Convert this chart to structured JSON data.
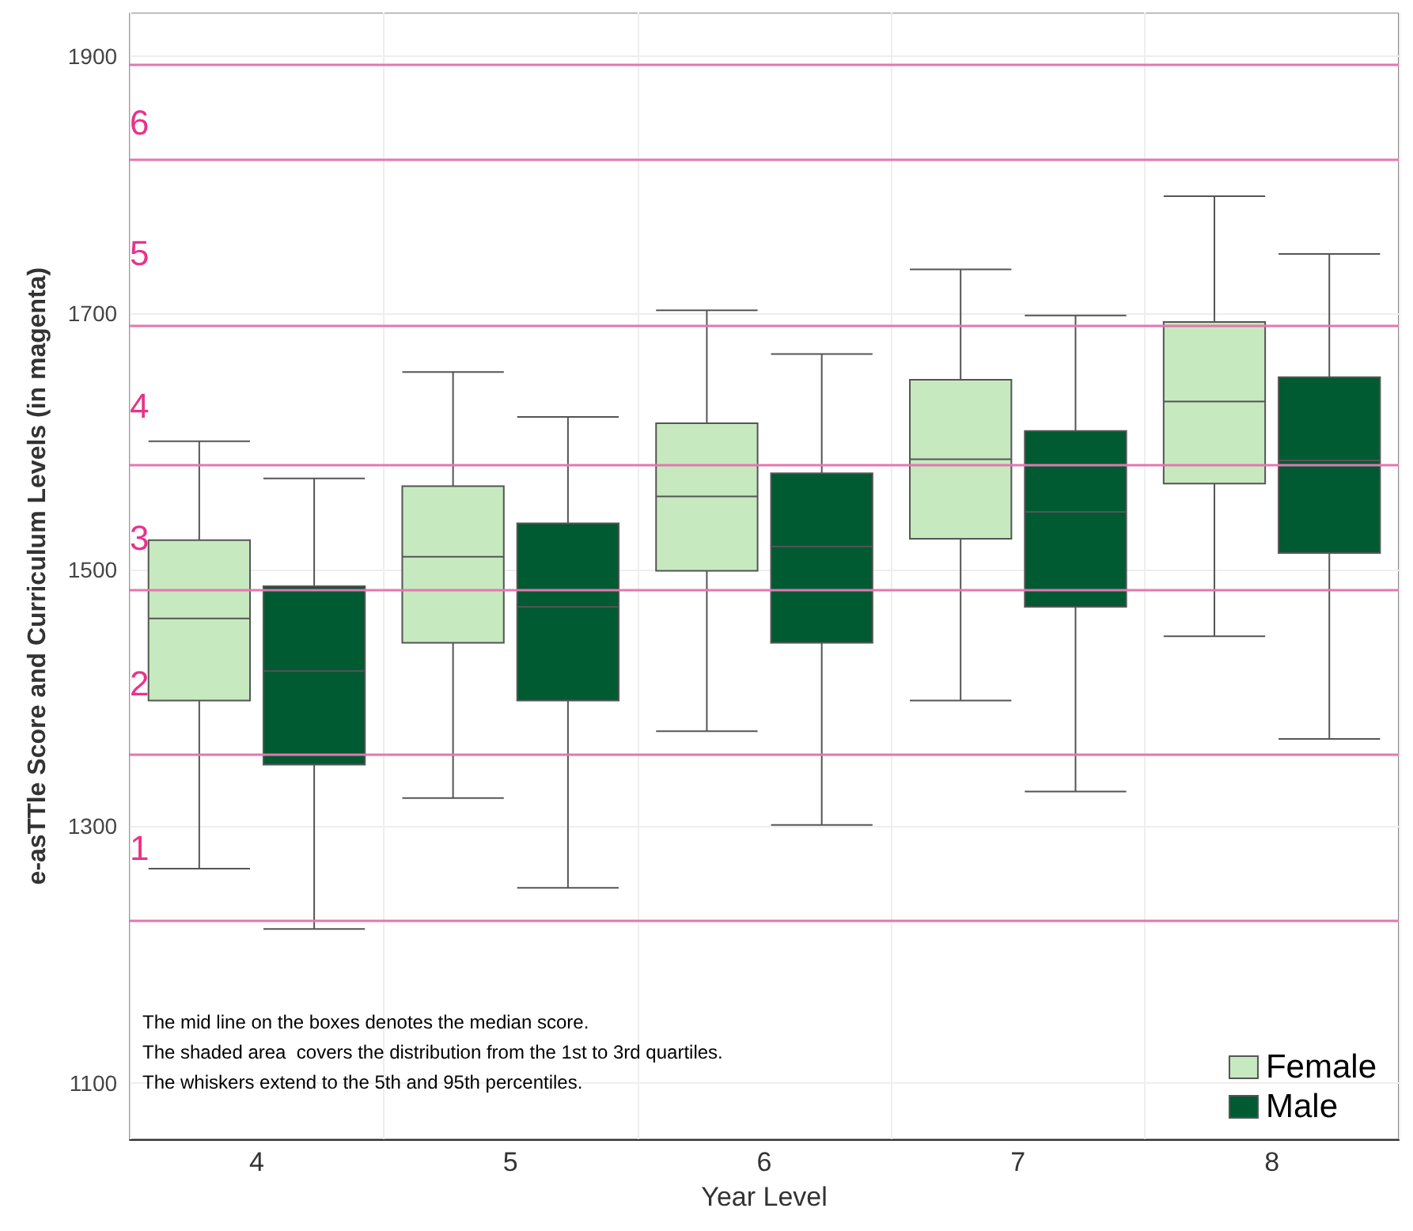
{
  "chart_data": {
    "type": "box",
    "xlabel": "Year Level",
    "ylabel": "e-asTTle Score and Curriculum Levels (in magenta)",
    "categories": [
      "4",
      "5",
      "6",
      "7",
      "8"
    ],
    "series": [
      {
        "name": "Female",
        "color": "#c7e9c0",
        "boxes": [
          {
            "low": 1267,
            "q1": 1398,
            "median": 1462,
            "q3": 1523,
            "high": 1600
          },
          {
            "low": 1322,
            "q1": 1443,
            "median": 1510,
            "q3": 1565,
            "high": 1654
          },
          {
            "low": 1374,
            "q1": 1499,
            "median": 1557,
            "q3": 1614,
            "high": 1702
          },
          {
            "low": 1398,
            "q1": 1524,
            "median": 1586,
            "q3": 1648,
            "high": 1734
          },
          {
            "low": 1448,
            "q1": 1567,
            "median": 1631,
            "q3": 1693,
            "high": 1791
          }
        ]
      },
      {
        "name": "Male",
        "color": "#005a32",
        "boxes": [
          {
            "low": 1220,
            "q1": 1348,
            "median": 1421,
            "q3": 1487,
            "high": 1571
          },
          {
            "low": 1252,
            "q1": 1398,
            "median": 1471,
            "q3": 1536,
            "high": 1619
          },
          {
            "low": 1301,
            "q1": 1443,
            "median": 1518,
            "q3": 1575,
            "high": 1668
          },
          {
            "low": 1327,
            "q1": 1471,
            "median": 1545,
            "q3": 1608,
            "high": 1698
          },
          {
            "low": 1368,
            "q1": 1513,
            "median": 1585,
            "q3": 1650,
            "high": 1746
          }
        ]
      }
    ],
    "ylim": [
      1056,
      1934
    ],
    "yticks": [
      1100,
      1300,
      1500,
      1700,
      1900
    ],
    "grid": true,
    "legend": "bottom right",
    "ref_lines": [
      {
        "axis": "y",
        "value": 1227,
        "color": "#e377b0"
      },
      {
        "axis": "y",
        "value": 1356,
        "color": "#e377b0"
      },
      {
        "axis": "y",
        "value": 1484,
        "color": "#e377b0"
      },
      {
        "axis": "y",
        "value": 1582,
        "color": "#e377b0"
      },
      {
        "axis": "y",
        "value": 1690,
        "color": "#e377b0"
      },
      {
        "axis": "y",
        "value": 1820,
        "color": "#e377b0"
      },
      {
        "axis": "y",
        "value": 1894,
        "color": "#e377b0"
      }
    ],
    "annotations": [
      "1",
      "2",
      "3",
      "4",
      "5",
      "6",
      "The mid line on the boxes denotes the median score.",
      "The shaded area  covers the distribution from the 1st to 3rd quartiles.",
      "The whiskers extend to the 5th and 95th percentiles."
    ]
  }
}
